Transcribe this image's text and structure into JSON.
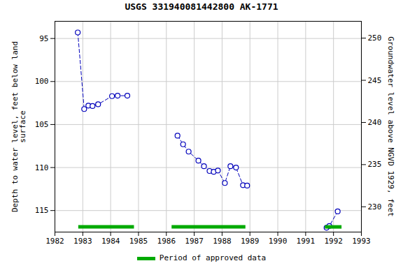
{
  "chart_data": {
    "type": "line",
    "title": "USGS 331940081442800 AK-1771",
    "ylabel": "Depth to water level, feet below land\nsurface",
    "y2label": "Groundwater level above NGVD 1929, feet",
    "xlim": [
      1982,
      1993
    ],
    "xticks": [
      1982,
      1983,
      1984,
      1985,
      1986,
      1987,
      1988,
      1989,
      1990,
      1991,
      1992,
      1993
    ],
    "ylim": [
      117.5,
      93.0
    ],
    "yticks": [
      95,
      100,
      105,
      110,
      115
    ],
    "y2lim": [
      227.0,
      252.0
    ],
    "y2ticks": [
      230,
      235,
      240,
      245,
      250
    ],
    "grid": true,
    "legend": "bottom",
    "series": [
      {
        "type": "line",
        "color": "#0000BB",
        "line_style": "dashed",
        "marker": "circle",
        "x": [
          1982.82,
          1983.05,
          1983.2,
          1983.35,
          1983.55,
          1984.05,
          1984.25,
          1984.6,
          null,
          1986.4,
          1986.6,
          1986.8,
          1987.15,
          1987.35,
          1987.55,
          1987.7,
          1987.85,
          1988.1,
          1988.3,
          1988.5,
          1988.75,
          1988.9,
          null,
          1991.75,
          1991.85,
          1992.15
        ],
        "values": [
          94.3,
          103.2,
          102.8,
          102.85,
          102.65,
          101.7,
          101.65,
          101.65,
          null,
          106.3,
          107.3,
          108.15,
          109.2,
          109.85,
          110.4,
          110.5,
          110.35,
          111.8,
          109.85,
          110.0,
          112.05,
          112.1,
          null,
          117.0,
          116.8,
          115.1
        ]
      },
      {
        "type": "range",
        "name": "Period of approved data",
        "color": "#00AA00",
        "periods": [
          [
            1982.85,
            1984.85
          ],
          [
            1986.2,
            1988.85
          ],
          [
            1991.7,
            1992.3
          ]
        ],
        "y": 116.9
      }
    ]
  }
}
